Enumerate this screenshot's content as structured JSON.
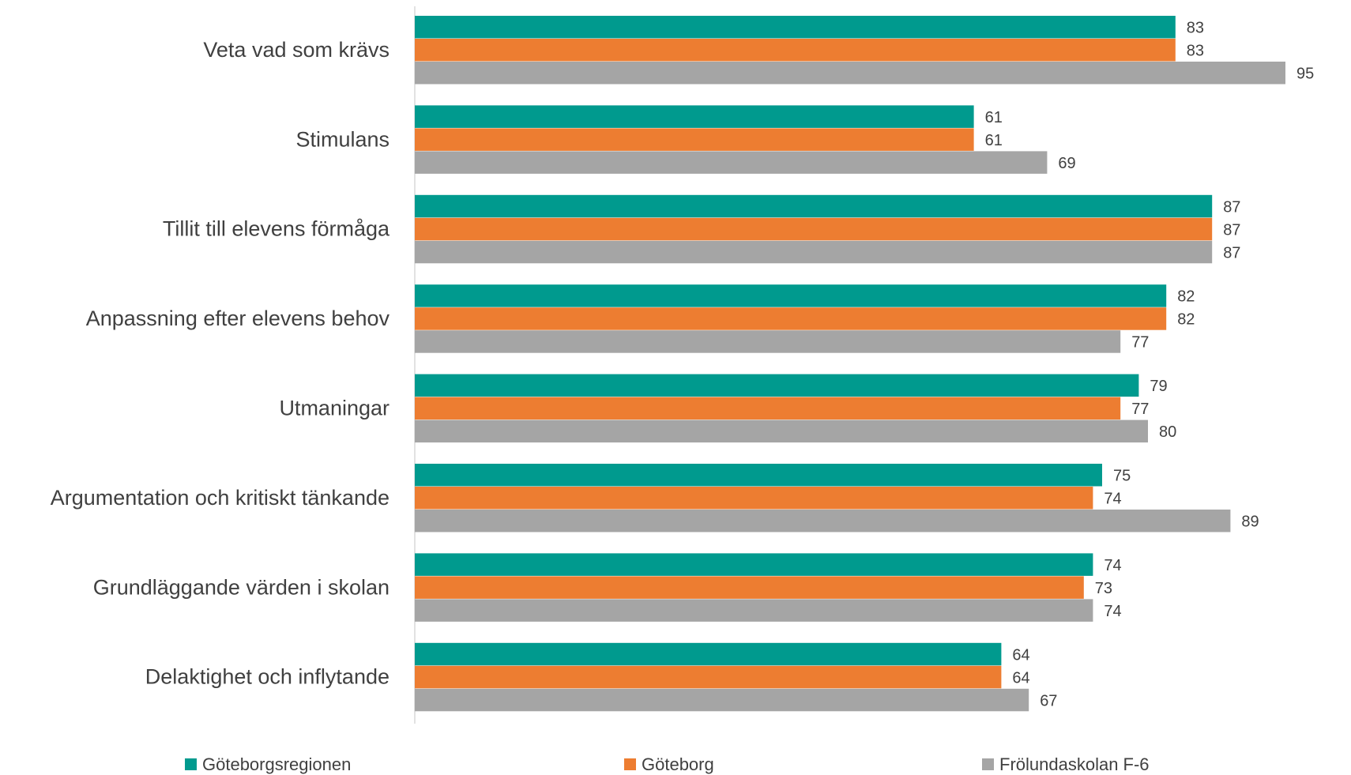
{
  "chart_data": {
    "type": "barh",
    "categories": [
      "Veta vad som krävs",
      "Stimulans",
      "Tillit till elevens förmåga",
      "Anpassning efter elevens behov",
      "Utmaningar",
      "Argumentation och kritiskt tänkande",
      "Grundläggande värden i skolan",
      "Delaktighet och inflytande"
    ],
    "series": [
      {
        "name": "Göteborgsregionen",
        "color": "#009a8e",
        "values": [
          83,
          61,
          87,
          82,
          79,
          75,
          74,
          64
        ]
      },
      {
        "name": "Göteborg",
        "color": "#ed7d31",
        "values": [
          83,
          61,
          87,
          82,
          77,
          74,
          73,
          64
        ]
      },
      {
        "name": "Frölundaskolan F-6",
        "color": "#a5a5a5",
        "values": [
          95,
          69,
          87,
          77,
          80,
          89,
          74,
          67
        ]
      }
    ],
    "xlim": [
      0,
      100
    ],
    "legend": "bottom"
  }
}
